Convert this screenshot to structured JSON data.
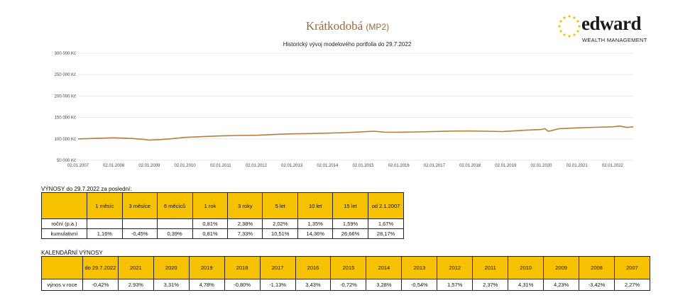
{
  "header": {
    "title": "Krátkodobá",
    "title_sub": "(MP2)",
    "logo_word": "edward",
    "logo_tag": "WEALTH MANAGEMENT"
  },
  "chart_data": {
    "type": "line",
    "title": "Historický vývoj modelového portfolia do 29.7.2022",
    "ylim": [
      50000,
      300000
    ],
    "yticks": [
      300000,
      250000,
      200000,
      150000,
      100000,
      50000
    ],
    "ytick_labels": [
      "300 000 Kč",
      "250 000 Kč",
      "200 000 Kč",
      "150 000 Kč",
      "100 000 Kč",
      "50 000 Kč"
    ],
    "xtick_labels": [
      "02.01.2007",
      "02.01.2008",
      "02.01.2009",
      "02.01.2010",
      "02.01.2011",
      "02.01.2012",
      "02.01.2013",
      "02.01.2014",
      "02.01.2015",
      "02.01.2016",
      "02.01.2017",
      "02.01.2018",
      "02.01.2019",
      "02.01.2020",
      "02.01.2021",
      "02.01.2022"
    ],
    "xlim": [
      2007.0,
      2022.58
    ],
    "series": [
      {
        "name": "MP2",
        "color": "#b5803a",
        "x": [
          2007.0,
          2007.5,
          2008.0,
          2008.5,
          2008.8,
          2009.0,
          2009.3,
          2009.6,
          2010.0,
          2010.5,
          2011.0,
          2011.5,
          2012.0,
          2012.5,
          2013.0,
          2013.5,
          2014.0,
          2014.5,
          2015.0,
          2015.3,
          2015.6,
          2016.0,
          2016.5,
          2017.0,
          2017.5,
          2018.0,
          2018.5,
          2018.9,
          2019.0,
          2019.5,
          2020.0,
          2020.1,
          2020.2,
          2020.5,
          2021.0,
          2021.5,
          2022.0,
          2022.2,
          2022.4,
          2022.58
        ],
        "values": [
          100000,
          101200,
          102500,
          101000,
          99200,
          97100,
          98400,
          100200,
          103500,
          105300,
          106900,
          108000,
          108500,
          110300,
          111800,
          112500,
          113400,
          114600,
          116500,
          117800,
          115800,
          115600,
          116300,
          117300,
          118200,
          118400,
          117800,
          117000,
          117500,
          120000,
          121900,
          123800,
          117500,
          123800,
          125700,
          127000,
          128200,
          130000,
          126600,
          128170
        ]
      }
    ]
  },
  "returns": {
    "label": "VÝNOSY do 29.7.2022 za poslední:",
    "headers": [
      "1 měsíc",
      "3 měsíce",
      "6 měcíců",
      "1 rok",
      "3 roky",
      "5 let",
      "10 let",
      "15 let",
      "od 2.1.2007"
    ],
    "rows": [
      {
        "label": "roční (p.a.)",
        "values": [
          "",
          "",
          "",
          "0,81%",
          "2,38%",
          "2,02%",
          "1,35%",
          "1,59%",
          "1,67%"
        ]
      },
      {
        "label": "kumulativní",
        "values": [
          "1,16%",
          "-0,45%",
          "0,39%",
          "0,81%",
          "7,33%",
          "10,51%",
          "14,36%",
          "26,66%",
          "28,17%"
        ]
      }
    ]
  },
  "calendar": {
    "label": "KALENDÁŘNÍ VÝNOSY",
    "headers": [
      "do 29.7.2022",
      "2021",
      "2020",
      "2019",
      "2018",
      "2017",
      "2016",
      "2015",
      "2014",
      "2013",
      "2012",
      "2011",
      "2010",
      "2009",
      "2008",
      "2007"
    ],
    "row": {
      "label": "výnos v roce",
      "values": [
        "-0,42%",
        "2,93%",
        "3,31%",
        "4,78%",
        "-0,80%",
        "-1,13%",
        "3,43%",
        "-0,72%",
        "3,28%",
        "-0,54%",
        "1,57%",
        "2,37%",
        "4,31%",
        "4,23%",
        "-3,42%",
        "2,27%"
      ]
    }
  }
}
